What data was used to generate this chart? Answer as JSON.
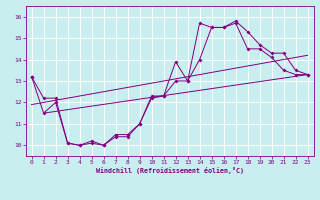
{
  "xlabel": "Windchill (Refroidissement éolien,°C)",
  "background_color": "#c8eef0",
  "grid_color": "#ffffff",
  "line_color": "#800080",
  "xlim": [
    -0.5,
    23.5
  ],
  "ylim": [
    9.5,
    16.5
  ],
  "xticks": [
    0,
    1,
    2,
    3,
    4,
    5,
    6,
    7,
    8,
    9,
    10,
    11,
    12,
    13,
    14,
    15,
    16,
    17,
    18,
    19,
    20,
    21,
    22,
    23
  ],
  "yticks": [
    10,
    11,
    12,
    13,
    14,
    15,
    16
  ],
  "series1_x": [
    0,
    1,
    2,
    3,
    4,
    5,
    6,
    7,
    8,
    9,
    10,
    11,
    12,
    13,
    14,
    15,
    16,
    17,
    18,
    19,
    20,
    21,
    22,
    23
  ],
  "series1_y": [
    13.2,
    12.2,
    12.2,
    10.1,
    10.0,
    10.2,
    10.0,
    10.4,
    10.4,
    11.0,
    12.3,
    12.3,
    13.9,
    13.0,
    15.7,
    15.5,
    15.5,
    15.8,
    15.3,
    14.7,
    14.3,
    14.3,
    13.5,
    13.3
  ],
  "series2_x": [
    0,
    1,
    2,
    3,
    4,
    5,
    6,
    7,
    8,
    9,
    10,
    11,
    12,
    13,
    14,
    15,
    16,
    17,
    18,
    19,
    20,
    21,
    22,
    23
  ],
  "series2_y": [
    13.2,
    11.5,
    12.0,
    10.1,
    10.0,
    10.1,
    10.0,
    10.5,
    10.5,
    11.0,
    12.2,
    12.3,
    13.0,
    13.0,
    14.0,
    15.5,
    15.5,
    15.7,
    14.5,
    14.5,
    14.1,
    13.5,
    13.3,
    13.3
  ],
  "line1_x": [
    1,
    23
  ],
  "line1_y": [
    11.5,
    13.3
  ],
  "line2_x": [
    0,
    23
  ],
  "line2_y": [
    11.9,
    14.2
  ]
}
